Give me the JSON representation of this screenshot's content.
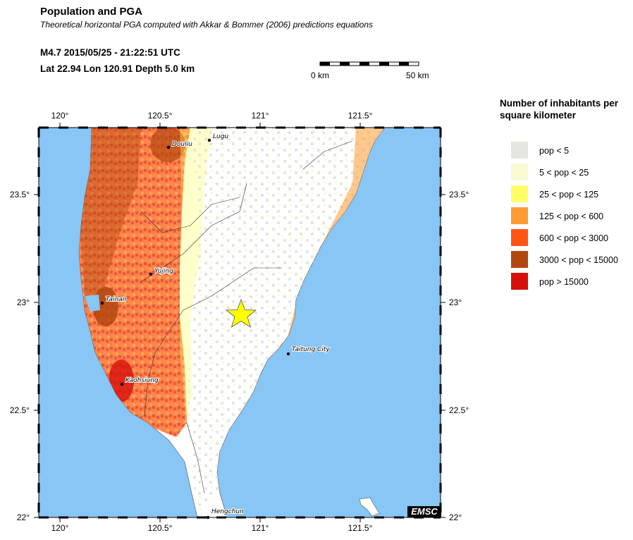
{
  "header": {
    "title": "Population and PGA",
    "subtitle": "Theoretical horizontal PGA computed with Akkar & Bommer (2006) predictions equations",
    "event_line1": "M4.7  2015/05/25 - 21:22:51 UTC",
    "event_line2": "Lat 22.94    Lon 120.91     Depth  5.0 km"
  },
  "scale": {
    "left_label": "0 km",
    "right_label": "50 km"
  },
  "map": {
    "lon_labels": [
      "120°",
      "120.5°",
      "121°",
      "121.5°"
    ],
    "lat_labels": [
      "23.5°",
      "23°",
      "22.5°",
      "22°"
    ],
    "sea_color": "#87c6f5",
    "land_color": "#ffffff",
    "epicenter_color": "#ffff00",
    "cities": [
      "Lugu",
      "Douliu",
      "Yujing",
      "Tainan",
      "Kaohsiung",
      "Taitung City",
      "Hengchun"
    ],
    "logo": "EMSC"
  },
  "legend": {
    "title": "Number of inhabitants per square kilometer",
    "items": [
      {
        "label": "pop < 5",
        "color": "#e6e6e1"
      },
      {
        "label": "5 < pop < 25",
        "color": "#fafad2"
      },
      {
        "label": "25 < pop < 125",
        "color": "#ffff64"
      },
      {
        "label": "125 < pop < 600",
        "color": "#ff9b32"
      },
      {
        "label": "600 < pop < 3000",
        "color": "#ff5514"
      },
      {
        "label": "3000 < pop < 15000",
        "color": "#b4460f"
      },
      {
        "label": "pop > 15000",
        "color": "#d70f0a"
      }
    ]
  }
}
